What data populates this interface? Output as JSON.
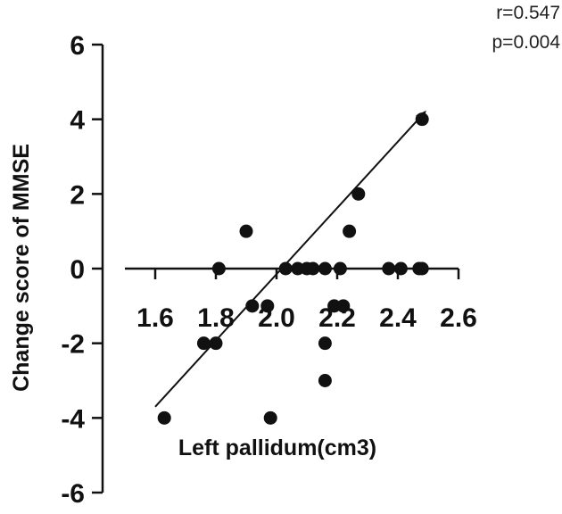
{
  "chart_data": {
    "type": "scatter",
    "xlabel": "Left pallidum(cm3)",
    "ylabel": "Change score of MMSE",
    "xlim": [
      1.5,
      2.6
    ],
    "ylim": [
      -6,
      6
    ],
    "x_ticks": [
      "1.6",
      "1.8",
      "2.0",
      "2.2",
      "2.4",
      "2.6"
    ],
    "y_ticks": [
      "6",
      "4",
      "2",
      "0",
      "-2",
      "-4",
      "-6"
    ],
    "annotations": [
      "r=0.547",
      "p=0.004"
    ],
    "points": [
      {
        "x": 1.63,
        "y": -4
      },
      {
        "x": 1.98,
        "y": -4
      },
      {
        "x": 1.76,
        "y": -2
      },
      {
        "x": 1.8,
        "y": -2
      },
      {
        "x": 1.81,
        "y": 0
      },
      {
        "x": 1.9,
        "y": 1
      },
      {
        "x": 1.92,
        "y": -1
      },
      {
        "x": 1.97,
        "y": -1
      },
      {
        "x": 2.03,
        "y": 0
      },
      {
        "x": 2.07,
        "y": 0
      },
      {
        "x": 2.1,
        "y": 0
      },
      {
        "x": 2.12,
        "y": 0
      },
      {
        "x": 2.16,
        "y": 0
      },
      {
        "x": 2.16,
        "y": -2
      },
      {
        "x": 2.16,
        "y": -3
      },
      {
        "x": 2.19,
        "y": -1
      },
      {
        "x": 2.21,
        "y": 0
      },
      {
        "x": 2.22,
        "y": -1
      },
      {
        "x": 2.24,
        "y": 1
      },
      {
        "x": 2.27,
        "y": 2
      },
      {
        "x": 2.37,
        "y": 0
      },
      {
        "x": 2.41,
        "y": 0
      },
      {
        "x": 2.47,
        "y": 0
      },
      {
        "x": 2.48,
        "y": 0
      },
      {
        "x": 2.48,
        "y": 4
      }
    ],
    "trend_line": {
      "x0": 1.6,
      "y0": -3.7,
      "x1": 2.49,
      "y1": 4.2
    },
    "grid": false
  }
}
